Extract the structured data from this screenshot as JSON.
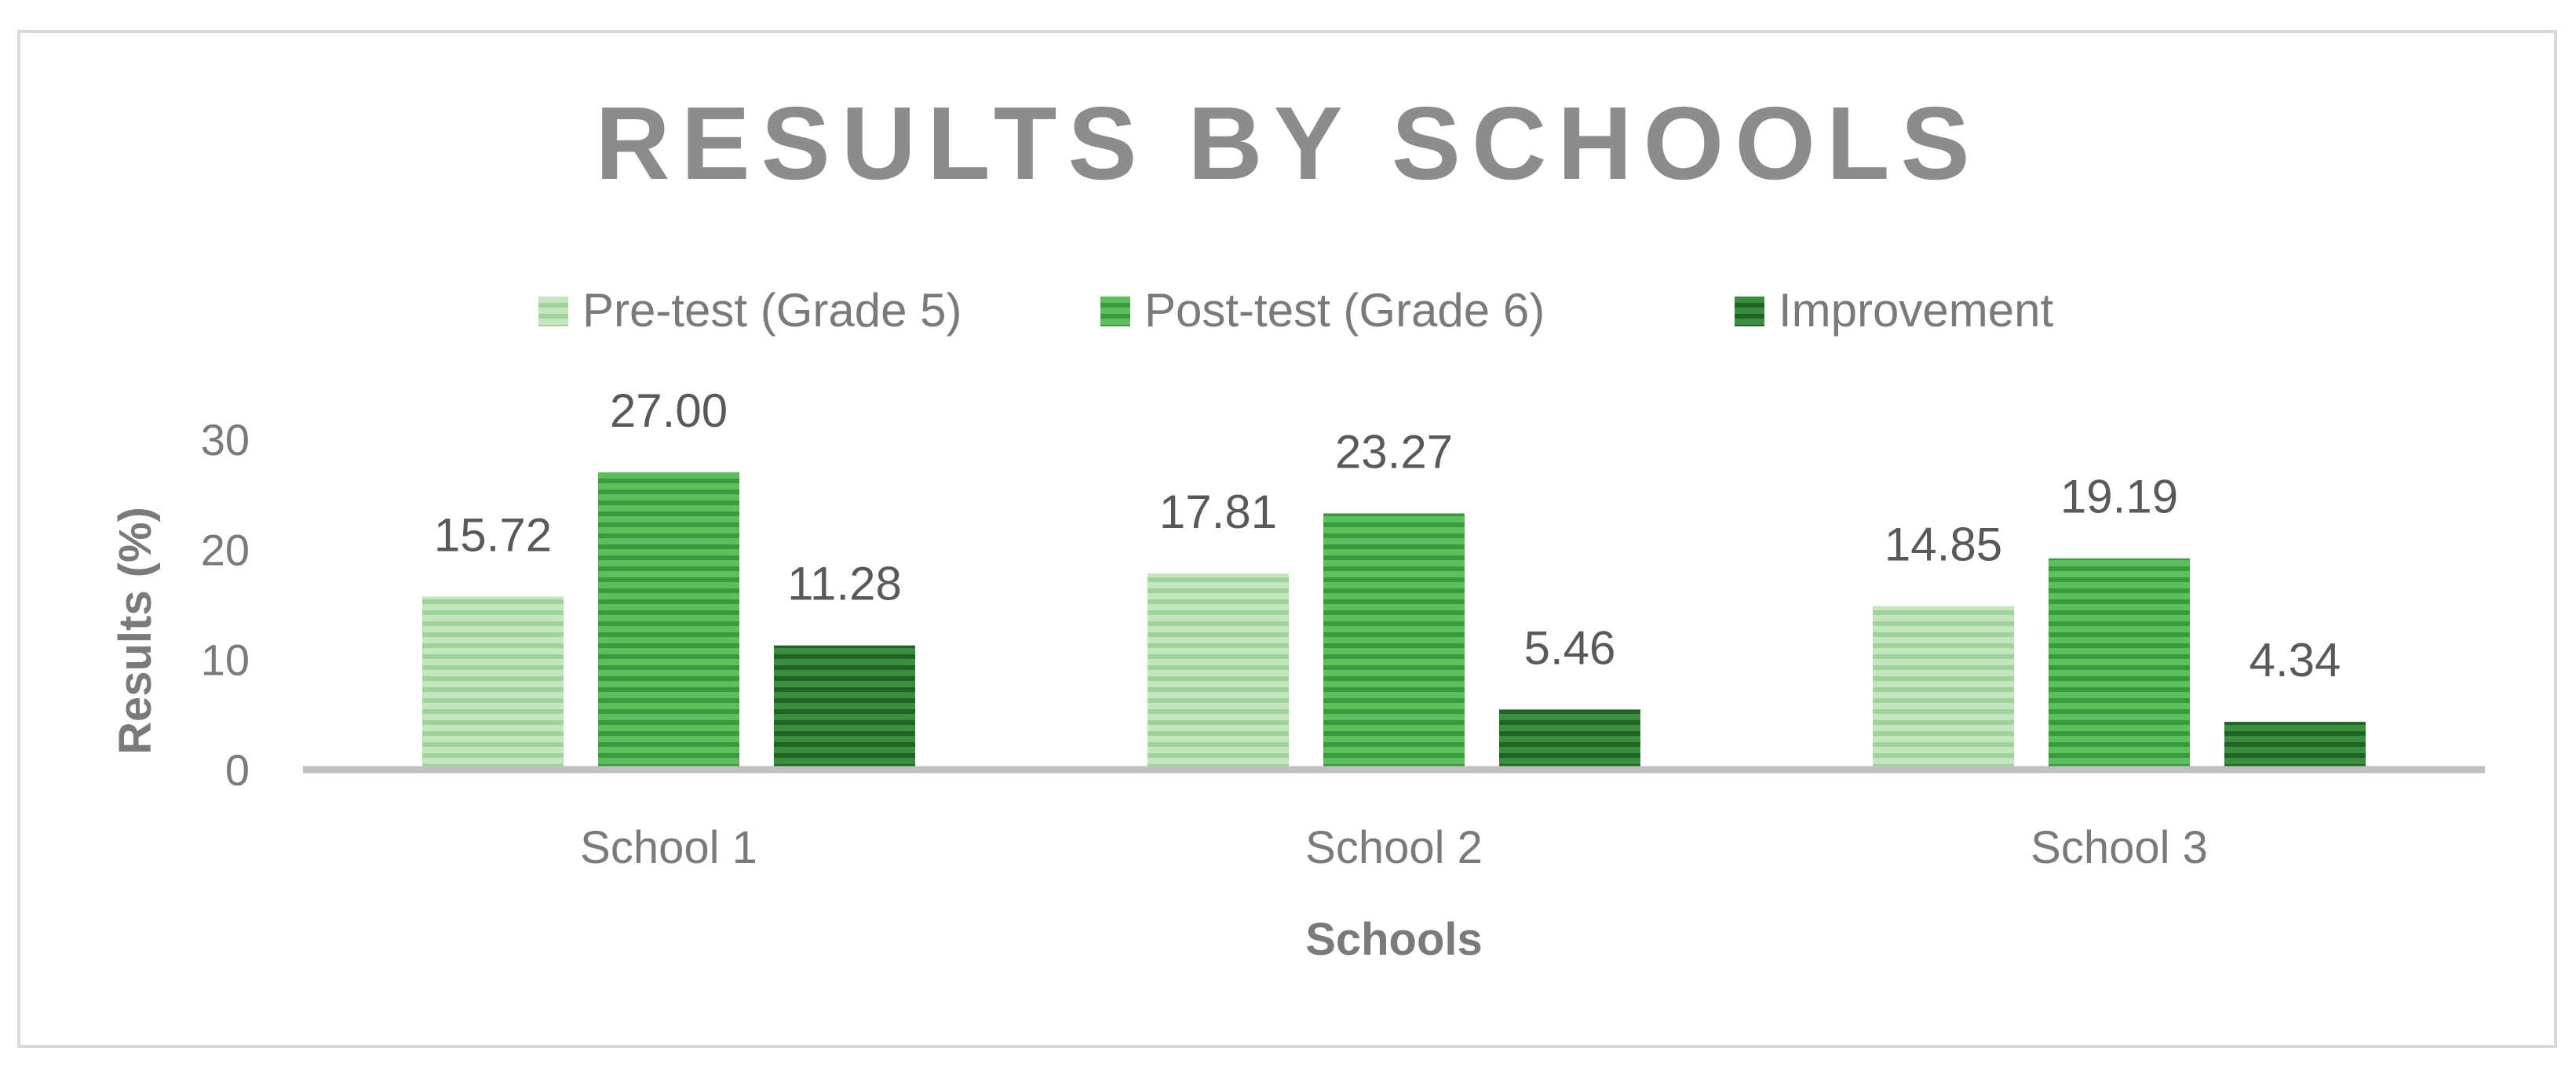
{
  "chart_data": {
    "type": "bar",
    "title": "RESULTS BY SCHOOLS",
    "xlabel": "Schools",
    "ylabel": "Results (%)",
    "categories": [
      "School 1",
      "School 2",
      "School 3"
    ],
    "ylim": [
      0,
      30
    ],
    "yticks": [
      0,
      10,
      20,
      30
    ],
    "grid": false,
    "legend_position": "top",
    "series": [
      {
        "name": "Pre-test (Grade 5)",
        "values": [
          15.72,
          17.81,
          14.85
        ],
        "labels": [
          "15.72",
          "17.81",
          "14.85"
        ],
        "color": "#a9d8a4"
      },
      {
        "name": "Post-test (Grade 6)",
        "values": [
          27.0,
          23.27,
          19.19
        ],
        "labels": [
          "27.00",
          "23.27",
          "19.19"
        ],
        "color": "#4caf50"
      },
      {
        "name": "Improvement",
        "values": [
          11.28,
          5.46,
          4.34
        ],
        "labels": [
          "11.28",
          "5.46",
          "4.34"
        ],
        "color": "#2e7d32"
      }
    ]
  }
}
